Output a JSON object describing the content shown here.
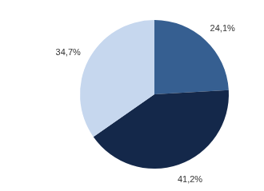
{
  "chart_data": {
    "type": "pie",
    "values": [
      24.1,
      41.2,
      34.7
    ],
    "value_labels": [
      "24,1%",
      "41,2%",
      "34,7%"
    ],
    "colors": [
      "#365f91",
      "#14284a",
      "#c6d7ee"
    ],
    "data_labels": true
  }
}
